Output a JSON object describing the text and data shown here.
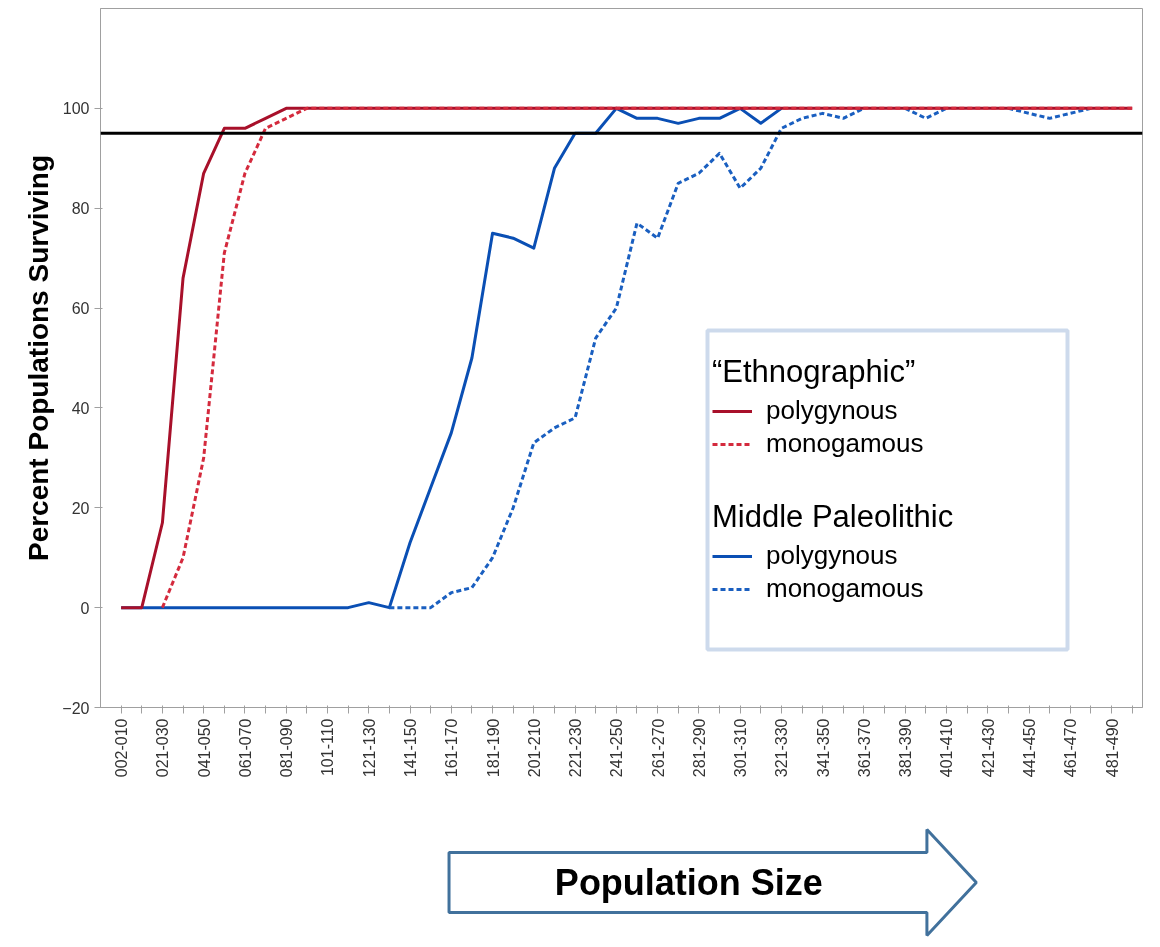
{
  "chart_data": {
    "type": "line",
    "xlabel": "Population Size",
    "ylabel": "Percent Populations Surviving",
    "legend_title": [
      "“Ethnographic”",
      "Middle Paleolithic"
    ],
    "categories": [
      "002-010",
      null,
      "021-030",
      null,
      "041-050",
      null,
      "061-070",
      null,
      "081-090",
      null,
      "101-110",
      null,
      "121-130",
      null,
      "141-150",
      null,
      "161-170",
      null,
      "181-190",
      null,
      "201-210",
      null,
      "221-230",
      null,
      "241-250",
      null,
      "261-270",
      null,
      "281-290",
      null,
      "301-310",
      null,
      "321-330",
      null,
      "341-350",
      null,
      "361-370",
      null,
      "381-390",
      null,
      "401-410",
      null,
      "421-430",
      null,
      "441-450",
      null,
      "461-470",
      null,
      "481-490",
      null
    ],
    "series": [
      {
        "name": "polygynous",
        "color": "#a8102a",
        "line_style": "solid",
        "values": [
          0,
          0,
          17,
          66,
          87,
          96,
          96,
          98,
          100,
          100,
          100,
          100,
          100,
          100,
          100,
          100,
          100,
          100,
          100,
          100,
          100,
          100,
          100,
          100,
          100,
          100,
          100,
          100,
          100,
          100,
          100,
          100,
          100,
          100,
          100,
          100,
          100,
          100,
          100,
          100,
          100,
          100,
          100,
          100,
          100,
          100,
          100,
          100,
          100,
          100
        ]
      },
      {
        "name": "monogamous",
        "color": "#d42a3d",
        "line_style": "dashed",
        "values": [
          null,
          null,
          0,
          10,
          30,
          71,
          87,
          96,
          98,
          100,
          100,
          100,
          100,
          100,
          100,
          100,
          100,
          100,
          100,
          100,
          100,
          100,
          100,
          100,
          100,
          100,
          100,
          100,
          100,
          100,
          100,
          100,
          100,
          100,
          100,
          100,
          100,
          100,
          100,
          100,
          100,
          100,
          100,
          100,
          100,
          100,
          100,
          100,
          100,
          100
        ]
      },
      {
        "name": "polygynous",
        "color": "#0a4fb4",
        "line_style": "solid",
        "values": [
          0,
          0,
          0,
          0,
          0,
          0,
          0,
          0,
          0,
          0,
          0,
          0,
          1,
          0,
          13,
          24,
          35,
          50,
          75,
          74,
          72,
          88,
          95,
          95,
          100,
          98,
          98,
          97,
          98,
          98,
          100,
          97,
          100,
          null,
          null,
          null,
          null,
          null,
          null,
          null,
          null,
          null,
          null,
          null,
          null,
          null,
          null,
          null,
          null,
          null
        ]
      },
      {
        "name": "monogamous",
        "color": "#1a5fc0",
        "line_style": "dashed",
        "values": [
          null,
          null,
          null,
          null,
          null,
          null,
          null,
          null,
          null,
          null,
          null,
          null,
          null,
          0,
          0,
          0,
          3,
          4,
          10,
          20,
          33,
          36,
          38,
          54,
          60,
          77,
          74,
          85,
          87,
          91,
          84,
          88,
          96,
          98,
          99,
          98,
          100,
          null,
          100,
          98,
          100,
          null,
          null,
          100,
          99,
          98,
          99,
          100,
          null,
          null
        ]
      }
    ],
    "ylim": [
      -20,
      120
    ],
    "yticks": [
      -20,
      0,
      20,
      40,
      60,
      80,
      100
    ],
    "ref_lines": [
      {
        "axis": "y",
        "value": 95,
        "color": "#000000"
      }
    ],
    "grid": false,
    "legend": "right",
    "marker": "none"
  }
}
